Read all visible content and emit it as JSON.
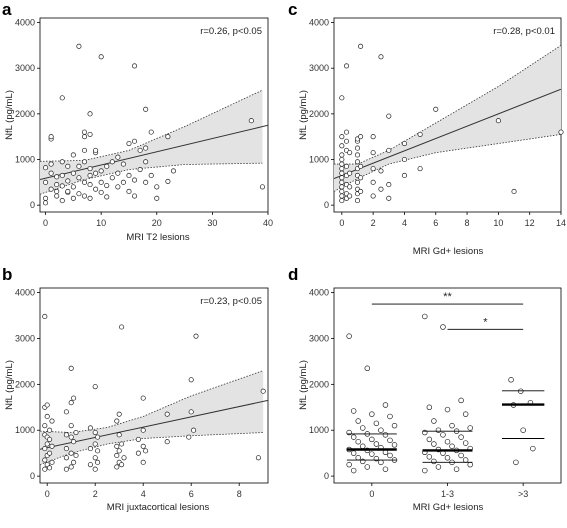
{
  "chart_data": [
    {
      "panel": "a",
      "type": "scatter",
      "xlabel": "MRI T2 lesions",
      "ylabel": "NfL (pg/mL)",
      "xlim": [
        -1,
        40
      ],
      "ylim": [
        -150,
        4100
      ],
      "xticks": [
        0,
        10,
        20,
        30,
        40
      ],
      "yticks": [
        0,
        1000,
        2000,
        3000,
        4000
      ],
      "annotation": "r=0.26, p<0.05",
      "fit": {
        "intercept": 590,
        "slope": 29
      },
      "ci": {
        "lower": [
          [
            -1,
            240
          ],
          [
            7,
            560
          ],
          [
            15,
            780
          ],
          [
            25,
            890
          ],
          [
            39,
            920
          ]
        ],
        "upper": [
          [
            -1,
            960
          ],
          [
            7,
            980
          ],
          [
            15,
            1200
          ],
          [
            25,
            1720
          ],
          [
            39,
            2520
          ]
        ]
      },
      "points": [
        [
          0,
          50
        ],
        [
          0,
          150
        ],
        [
          0,
          500
        ],
        [
          0,
          820
        ],
        [
          1,
          350
        ],
        [
          1,
          700
        ],
        [
          1,
          900
        ],
        [
          1,
          1450
        ],
        [
          1,
          1500
        ],
        [
          2,
          300
        ],
        [
          2,
          450
        ],
        [
          2,
          620
        ],
        [
          2,
          200
        ],
        [
          3,
          100
        ],
        [
          3,
          420
        ],
        [
          3,
          650
        ],
        [
          3,
          950
        ],
        [
          3,
          2350
        ],
        [
          4,
          280
        ],
        [
          4,
          530
        ],
        [
          4,
          850
        ],
        [
          4,
          300
        ],
        [
          5,
          150
        ],
        [
          5,
          400
        ],
        [
          5,
          700
        ],
        [
          5,
          1100
        ],
        [
          6,
          250
        ],
        [
          6,
          600
        ],
        [
          6,
          850
        ],
        [
          6,
          3480
        ],
        [
          7,
          200
        ],
        [
          7,
          500
        ],
        [
          7,
          950
        ],
        [
          7,
          1200
        ],
        [
          7,
          1500
        ],
        [
          7,
          1600
        ],
        [
          8,
          150
        ],
        [
          8,
          450
        ],
        [
          8,
          650
        ],
        [
          8,
          800
        ],
        [
          8,
          1550
        ],
        [
          8,
          2000
        ],
        [
          9,
          350
        ],
        [
          9,
          700
        ],
        [
          9,
          1150
        ],
        [
          9,
          1200
        ],
        [
          10,
          280
        ],
        [
          10,
          500
        ],
        [
          10,
          750
        ],
        [
          10,
          3250
        ],
        [
          11,
          180
        ],
        [
          11,
          430
        ],
        [
          11,
          850
        ],
        [
          12,
          600
        ],
        [
          12,
          950
        ],
        [
          13,
          400
        ],
        [
          13,
          700
        ],
        [
          13,
          1050
        ],
        [
          14,
          500
        ],
        [
          14,
          900
        ],
        [
          15,
          300
        ],
        [
          15,
          650
        ],
        [
          15,
          1350
        ],
        [
          16,
          200
        ],
        [
          16,
          550
        ],
        [
          16,
          1400
        ],
        [
          16,
          3050
        ],
        [
          17,
          780
        ],
        [
          17,
          1200
        ],
        [
          18,
          500
        ],
        [
          18,
          950
        ],
        [
          18,
          1250
        ],
        [
          18,
          2100
        ],
        [
          19,
          650
        ],
        [
          19,
          1600
        ],
        [
          20,
          150
        ],
        [
          20,
          400
        ],
        [
          22,
          520
        ],
        [
          22,
          1500
        ],
        [
          23,
          750
        ],
        [
          37,
          1850
        ],
        [
          39,
          400
        ]
      ]
    },
    {
      "panel": "c",
      "type": "scatter",
      "xlabel": "MRI Gd+ lesions",
      "ylabel": "NfL (pg/mL)",
      "xlim": [
        -0.5,
        14
      ],
      "ylim": [
        -150,
        4100
      ],
      "xticks": [
        0,
        2,
        4,
        6,
        8,
        10,
        12,
        14
      ],
      "yticks": [
        0,
        1000,
        2000,
        3000,
        4000
      ],
      "annotation": "r=0.28, p<0.01",
      "fit": {
        "intercept": 650,
        "slope": 135
      },
      "ci": {
        "lower": [
          [
            -0.5,
            300
          ],
          [
            1,
            580
          ],
          [
            3,
            900
          ],
          [
            6,
            1150
          ],
          [
            10,
            1350
          ],
          [
            14,
            1550
          ]
        ],
        "upper": [
          [
            -0.5,
            900
          ],
          [
            1,
            900
          ],
          [
            3,
            1200
          ],
          [
            6,
            1800
          ],
          [
            10,
            2600
          ],
          [
            14,
            3500
          ]
        ]
      },
      "points": [
        [
          0,
          100
        ],
        [
          0,
          200
        ],
        [
          0,
          300
        ],
        [
          0,
          400
        ],
        [
          0,
          500
        ],
        [
          0,
          600
        ],
        [
          0,
          700
        ],
        [
          0,
          800
        ],
        [
          0,
          900
        ],
        [
          0,
          1000
        ],
        [
          0,
          1100
        ],
        [
          0,
          1300
        ],
        [
          0,
          1500
        ],
        [
          0,
          2350
        ],
        [
          0.3,
          150
        ],
        [
          0.3,
          250
        ],
        [
          0.3,
          450
        ],
        [
          0.3,
          650
        ],
        [
          0.3,
          850
        ],
        [
          0.3,
          1200
        ],
        [
          0.3,
          1400
        ],
        [
          0.3,
          1600
        ],
        [
          0.3,
          3050
        ],
        [
          0.5,
          200
        ],
        [
          0.5,
          400
        ],
        [
          0.5,
          700
        ],
        [
          0.5,
          1150
        ],
        [
          1,
          100
        ],
        [
          1,
          250
        ],
        [
          1,
          350
        ],
        [
          1,
          500
        ],
        [
          1,
          650
        ],
        [
          1,
          800
        ],
        [
          1,
          950
        ],
        [
          1,
          1100
        ],
        [
          1,
          1250
        ],
        [
          1,
          1400
        ],
        [
          1,
          1450
        ],
        [
          1.2,
          300
        ],
        [
          1.2,
          600
        ],
        [
          1.2,
          850
        ],
        [
          1.2,
          1500
        ],
        [
          1.2,
          3480
        ],
        [
          2,
          200
        ],
        [
          2,
          500
        ],
        [
          2,
          800
        ],
        [
          2,
          1150
        ],
        [
          2,
          1500
        ],
        [
          2.5,
          350
        ],
        [
          2.5,
          750
        ],
        [
          2.5,
          3250
        ],
        [
          3,
          150
        ],
        [
          3,
          450
        ],
        [
          3,
          1200
        ],
        [
          3,
          1950
        ],
        [
          4,
          650
        ],
        [
          4,
          1000
        ],
        [
          4,
          1350
        ],
        [
          5,
          800
        ],
        [
          5,
          1550
        ],
        [
          6,
          2100
        ],
        [
          10,
          1850
        ],
        [
          11,
          300
        ],
        [
          14,
          1600
        ]
      ]
    },
    {
      "panel": "b",
      "type": "scatter",
      "xlabel": "MRI juxtacortical lesions",
      "ylabel": "NfL (pg/mL)",
      "xlim": [
        -0.3,
        9.2
      ],
      "ylim": [
        -150,
        4100
      ],
      "xticks": [
        0,
        2,
        4,
        6,
        8
      ],
      "yticks": [
        0,
        1000,
        2000,
        3000,
        4000
      ],
      "annotation": "r=0.23, p<0.05",
      "fit": {
        "intercept": 620,
        "slope": 112
      },
      "ci": {
        "lower": [
          [
            -0.3,
            250
          ],
          [
            1,
            500
          ],
          [
            2.5,
            700
          ],
          [
            4,
            820
          ],
          [
            6,
            880
          ],
          [
            9,
            950
          ]
        ],
        "upper": [
          [
            -0.3,
            980
          ],
          [
            1,
            950
          ],
          [
            2.5,
            1060
          ],
          [
            4,
            1300
          ],
          [
            6,
            1750
          ],
          [
            9,
            2300
          ]
        ]
      },
      "points": [
        [
          -0.1,
          150
        ],
        [
          -0.1,
          350
        ],
        [
          -0.1,
          600
        ],
        [
          -0.1,
          900
        ],
        [
          -0.1,
          1100
        ],
        [
          -0.1,
          1500
        ],
        [
          -0.1,
          3480
        ],
        [
          0,
          250
        ],
        [
          0,
          450
        ],
        [
          0,
          700
        ],
        [
          0,
          850
        ],
        [
          0,
          1300
        ],
        [
          0,
          1550
        ],
        [
          0.1,
          180
        ],
        [
          0.1,
          500
        ],
        [
          0.1,
          800
        ],
        [
          0.1,
          1000
        ],
        [
          0.2,
          300
        ],
        [
          0.2,
          650
        ],
        [
          0.2,
          1200
        ],
        [
          0.8,
          150
        ],
        [
          0.8,
          400
        ],
        [
          0.8,
          600
        ],
        [
          0.8,
          900
        ],
        [
          0.8,
          1400
        ],
        [
          1,
          200
        ],
        [
          1,
          500
        ],
        [
          1,
          850
        ],
        [
          1,
          1100
        ],
        [
          1,
          1600
        ],
        [
          1,
          2350
        ],
        [
          1.1,
          300
        ],
        [
          1.1,
          750
        ],
        [
          1.1,
          1700
        ],
        [
          1.2,
          450
        ],
        [
          1.2,
          950
        ],
        [
          1.8,
          250
        ],
        [
          1.8,
          600
        ],
        [
          1.8,
          1050
        ],
        [
          2,
          150
        ],
        [
          2,
          400
        ],
        [
          2,
          700
        ],
        [
          2,
          950
        ],
        [
          2,
          1950
        ],
        [
          2.1,
          300
        ],
        [
          2.1,
          550
        ],
        [
          2.1,
          850
        ],
        [
          2.9,
          200
        ],
        [
          2.9,
          450
        ],
        [
          2.9,
          650
        ],
        [
          2.9,
          1200
        ],
        [
          3,
          300
        ],
        [
          3,
          550
        ],
        [
          3,
          900
        ],
        [
          3,
          1350
        ],
        [
          3.1,
          250
        ],
        [
          3.1,
          700
        ],
        [
          3.1,
          3250
        ],
        [
          3.2,
          400
        ],
        [
          3.8,
          500
        ],
        [
          3.8,
          800
        ],
        [
          4,
          300
        ],
        [
          4,
          650
        ],
        [
          4,
          1000
        ],
        [
          4,
          1700
        ],
        [
          4.1,
          550
        ],
        [
          5,
          750
        ],
        [
          5,
          1350
        ],
        [
          5.9,
          850
        ],
        [
          6,
          1400
        ],
        [
          6,
          2100
        ],
        [
          6.1,
          1000
        ],
        [
          6.2,
          3050
        ],
        [
          8.8,
          400
        ],
        [
          9,
          1850
        ]
      ]
    },
    {
      "panel": "d",
      "type": "scatter",
      "xlabel": "MRI Gd+ lesions",
      "ylabel": "NfL (pg/mL)",
      "categories": [
        "0",
        "1-3",
        ">3"
      ],
      "ylim": [
        -150,
        4100
      ],
      "yticks": [
        0,
        1000,
        2000,
        3000,
        4000
      ],
      "medians": [
        580,
        560,
        1560
      ],
      "iqr": [
        [
          350,
          920
        ],
        [
          300,
          980
        ],
        [
          820,
          1860
        ]
      ],
      "significance": [
        {
          "from": 0,
          "to": 2,
          "label": "**",
          "y": 3750
        },
        {
          "from": 1,
          "to": 2,
          "label": "*",
          "y": 3200
        }
      ],
      "groups": [
        [
          3050,
          2350,
          1550,
          1420,
          1350,
          1300,
          1200,
          1150,
          1100,
          1050,
          1000,
          950,
          920,
          900,
          850,
          800,
          780,
          750,
          700,
          680,
          650,
          620,
          580,
          560,
          520,
          500,
          480,
          450,
          400,
          380,
          350,
          320,
          300,
          250,
          200,
          150,
          120
        ],
        [
          3480,
          3250,
          1650,
          1500,
          1450,
          1350,
          1200,
          1100,
          1050,
          1000,
          980,
          950,
          900,
          850,
          800,
          750,
          720,
          700,
          650,
          600,
          580,
          560,
          520,
          500,
          450,
          420,
          400,
          350,
          320,
          300,
          250,
          200,
          150,
          120
        ],
        [
          2100,
          1850,
          1600,
          1550,
          1000,
          600,
          300
        ]
      ]
    }
  ]
}
